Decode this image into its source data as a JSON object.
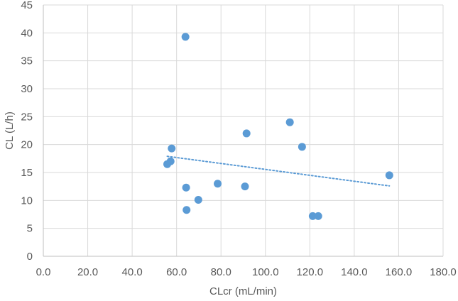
{
  "chart_data": {
    "type": "scatter",
    "title": "",
    "xlabel": "CLcr (mL/min)",
    "ylabel": "CL (L/h)",
    "xlim": [
      0,
      180
    ],
    "ylim": [
      0,
      45
    ],
    "x_ticks": [
      "0.0",
      "20.0",
      "40.0",
      "60.0",
      "80.0",
      "100.0",
      "120.0",
      "140.0",
      "160.0",
      "180.0"
    ],
    "y_ticks": [
      "0",
      "5",
      "10",
      "15",
      "20",
      "25",
      "30",
      "35",
      "40",
      "45"
    ],
    "grid": true,
    "legend": "none",
    "series": [
      {
        "points": [
          {
            "x": 64.0,
            "y": 39.3
          },
          {
            "x": 111.0,
            "y": 24.0
          },
          {
            "x": 91.5,
            "y": 22.0
          },
          {
            "x": 116.5,
            "y": 19.6
          },
          {
            "x": 57.8,
            "y": 19.3
          },
          {
            "x": 57.3,
            "y": 17.0
          },
          {
            "x": 55.8,
            "y": 16.5
          },
          {
            "x": 155.8,
            "y": 14.5
          },
          {
            "x": 78.5,
            "y": 13.0
          },
          {
            "x": 90.8,
            "y": 12.5
          },
          {
            "x": 64.3,
            "y": 12.3
          },
          {
            "x": 69.8,
            "y": 10.1
          },
          {
            "x": 64.5,
            "y": 8.3
          },
          {
            "x": 121.3,
            "y": 7.2
          },
          {
            "x": 123.8,
            "y": 7.2
          }
        ],
        "color": "#5b9bd5"
      }
    ],
    "trendline": {
      "type": "linear",
      "style": "dotted",
      "color": "#5b9bd5",
      "x_start": 55.8,
      "y_start": 17.9,
      "x_end": 155.8,
      "y_end": 12.6
    }
  }
}
